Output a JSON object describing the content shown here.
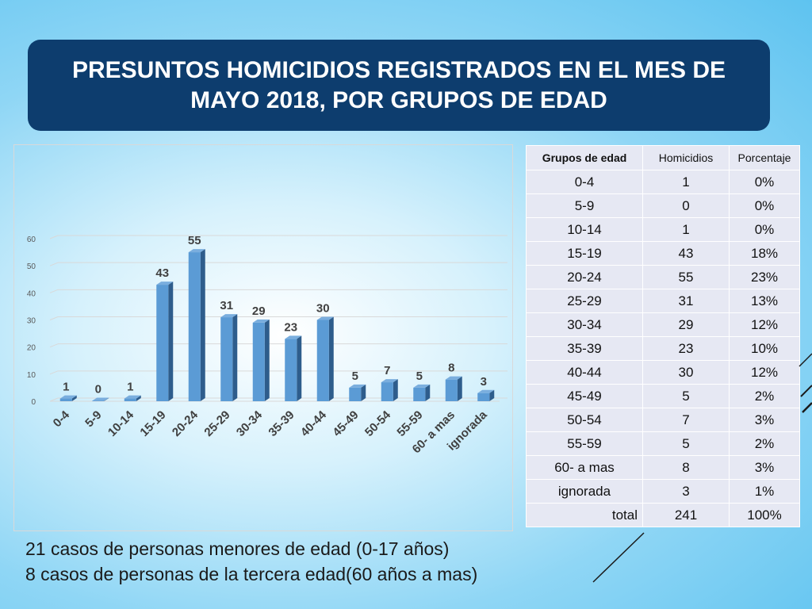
{
  "title": "PRESUNTOS HOMICIDIOS REGISTRADOS EN EL MES DE MAYO 2018, POR GRUPOS DE EDAD",
  "chart_data": {
    "type": "bar",
    "categories": [
      "0-4",
      "5-9",
      "10-14",
      "15-19",
      "20-24",
      "25-29",
      "30-34",
      "35-39",
      "40-44",
      "45-49",
      "50-54",
      "55-59",
      "60- a mas",
      "ignorada"
    ],
    "values": [
      1,
      0,
      1,
      43,
      55,
      31,
      29,
      23,
      30,
      5,
      7,
      5,
      8,
      3
    ],
    "ylim": [
      0,
      60
    ],
    "yticks": [
      0,
      10,
      20,
      30,
      40,
      50,
      60
    ],
    "grid": true,
    "bar_color": "#5b9bd5"
  },
  "table": {
    "headers": [
      "Grupos de edad",
      "Homicidios",
      "Porcentaje"
    ],
    "rows": [
      [
        "0-4",
        "1",
        "0%"
      ],
      [
        "5-9",
        "0",
        "0%"
      ],
      [
        "10-14",
        "1",
        "0%"
      ],
      [
        "15-19",
        "43",
        "18%"
      ],
      [
        "20-24",
        "55",
        "23%"
      ],
      [
        "25-29",
        "31",
        "13%"
      ],
      [
        "30-34",
        "29",
        "12%"
      ],
      [
        "35-39",
        "23",
        "10%"
      ],
      [
        "40-44",
        "30",
        "12%"
      ],
      [
        "45-49",
        "5",
        "2%"
      ],
      [
        "50-54",
        "7",
        "3%"
      ],
      [
        "55-59",
        "5",
        "2%"
      ],
      [
        "60- a mas",
        "8",
        "3%"
      ],
      [
        "ignorada",
        "3",
        "1%"
      ]
    ],
    "total": [
      "total",
      "241",
      "100%"
    ]
  },
  "notes": [
    "21 casos de personas menores de edad (0-17 años)",
    "8 casos de personas de la tercera edad(60 años a mas)"
  ]
}
